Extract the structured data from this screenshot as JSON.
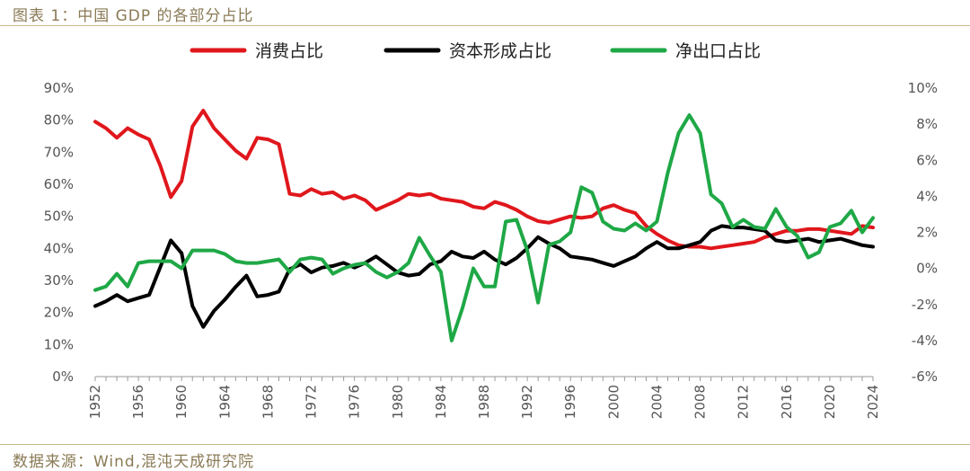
{
  "header": {
    "title": "图表 1：中国 GDP 的各部分占比"
  },
  "footer": {
    "source": "数据来源：Wind,混沌天成研究院"
  },
  "colors": {
    "consumption": "#e0171c",
    "capital": "#000000",
    "netexport": "#1fa846"
  },
  "chart_data": {
    "type": "line",
    "title": "",
    "legend_position": "top",
    "grid": false,
    "x": [
      1952,
      1953,
      1954,
      1955,
      1956,
      1957,
      1958,
      1959,
      1960,
      1961,
      1962,
      1963,
      1964,
      1965,
      1966,
      1967,
      1968,
      1969,
      1970,
      1971,
      1972,
      1973,
      1974,
      1975,
      1976,
      1977,
      1978,
      1979,
      1980,
      1981,
      1982,
      1983,
      1984,
      1985,
      1986,
      1987,
      1988,
      1989,
      1990,
      1991,
      1992,
      1993,
      1994,
      1995,
      1996,
      1997,
      1998,
      1999,
      2000,
      2001,
      2002,
      2003,
      2004,
      2005,
      2006,
      2007,
      2008,
      2009,
      2010,
      2011,
      2012,
      2013,
      2014,
      2015,
      2016,
      2017,
      2018,
      2019,
      2020,
      2021,
      2022,
      2023,
      2024
    ],
    "x_ticks": [
      "1952",
      "1956",
      "1960",
      "1964",
      "1968",
      "1972",
      "1976",
      "1980",
      "1984",
      "1988",
      "1992",
      "1996",
      "2000",
      "2004",
      "2008",
      "2012",
      "2016",
      "2020",
      "2024"
    ],
    "y_left": {
      "lim": [
        0,
        90
      ],
      "ticks": [
        "0%",
        "10%",
        "20%",
        "30%",
        "40%",
        "50%",
        "60%",
        "70%",
        "80%",
        "90%"
      ]
    },
    "y_right": {
      "lim": [
        -6,
        10
      ],
      "ticks": [
        "-6%",
        "-4%",
        "-2%",
        "0%",
        "2%",
        "4%",
        "6%",
        "8%",
        "10%"
      ]
    },
    "series": [
      {
        "name": "消费占比",
        "axis": "left",
        "color": "#e0171c",
        "values": [
          79.5,
          77.5,
          74.5,
          77.5,
          75.5,
          74,
          66,
          56,
          61,
          78,
          83,
          77.5,
          74,
          70.5,
          68,
          74.5,
          74,
          72.5,
          57,
          56.5,
          58.5,
          57,
          57.5,
          55.5,
          56.5,
          55,
          52,
          53.5,
          55,
          57,
          56.5,
          57,
          55.5,
          55,
          54.5,
          53,
          52.5,
          54.5,
          53.5,
          52,
          50,
          48.5,
          48,
          49,
          50,
          49.5,
          50,
          52.5,
          53.5,
          52,
          51,
          47,
          44.5,
          42.5,
          41,
          40.5,
          40.5,
          40,
          40.5,
          41,
          41.5,
          42,
          43.5,
          44.5,
          45.5,
          45.5,
          46,
          46,
          45.5,
          45,
          44.5,
          47,
          46.5
        ]
      },
      {
        "name": "资本形成占比",
        "axis": "left",
        "color": "#000000",
        "values": [
          22,
          23.5,
          25.5,
          23.5,
          24.5,
          25.5,
          34,
          42.5,
          38.5,
          22,
          15.5,
          20.5,
          24,
          28,
          31.5,
          25,
          25.5,
          26.5,
          33.5,
          35,
          32.5,
          34,
          34.5,
          35.5,
          34,
          35.5,
          37.5,
          35,
          32.5,
          31.5,
          32,
          35,
          36,
          39,
          37.5,
          37,
          39,
          36.5,
          35,
          37,
          40,
          43.5,
          41.5,
          40,
          37.5,
          37,
          36.5,
          35.5,
          34.5,
          36,
          37.5,
          40,
          42,
          40,
          40,
          41,
          42,
          45.5,
          47,
          46.5,
          46.5,
          46,
          45.5,
          42.5,
          42,
          42.5,
          43,
          42,
          42.5,
          43,
          42,
          41,
          40.5
        ]
      },
      {
        "name": "净出口占比",
        "axis": "right",
        "color": "#1fa846",
        "values": [
          -1.2,
          -1,
          -0.3,
          -1,
          0.3,
          0.4,
          0.4,
          0.4,
          0,
          1,
          1,
          1,
          0.8,
          0.4,
          0.3,
          0.3,
          0.4,
          0.5,
          -0.2,
          0.5,
          0.6,
          0.5,
          -0.3,
          0,
          0.2,
          0.3,
          -0.2,
          -0.5,
          -0.2,
          0.3,
          1.7,
          0.7,
          -0.2,
          -4,
          -2.2,
          0,
          -1,
          -1,
          2.6,
          2.7,
          1,
          -1.9,
          1.3,
          1.5,
          2,
          4.5,
          4.2,
          2.6,
          2.2,
          2.1,
          2.5,
          2.1,
          2.6,
          5.3,
          7.5,
          8.5,
          7.5,
          4.1,
          3.6,
          2.3,
          2.7,
          2.3,
          2.2,
          3.3,
          2.3,
          1.8,
          0.6,
          0.9,
          2.3,
          2.5,
          3.2,
          2,
          2.8
        ]
      }
    ]
  }
}
